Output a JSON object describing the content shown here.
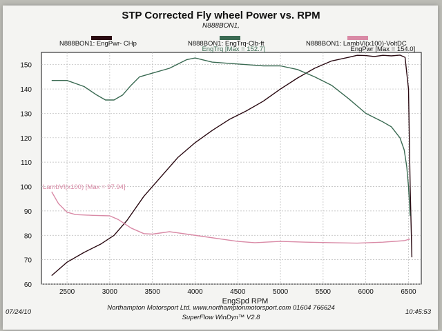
{
  "chart_data": {
    "type": "line",
    "title": "STP Corrected Fly wheel Power vs. RPM",
    "subtitle": "N888BON1,",
    "xlabel": "EngSpd  RPM",
    "ylabel": "",
    "xlim": [
      2200,
      6650
    ],
    "ylim": [
      60,
      155
    ],
    "x_ticks": [
      2500,
      3000,
      3500,
      4000,
      4500,
      5000,
      5500,
      6000,
      6500
    ],
    "y_ticks": [
      60,
      70,
      80,
      90,
      100,
      110,
      120,
      130,
      140,
      150
    ],
    "grid": true,
    "series": [
      {
        "name": "N888BON1: EngPwr- CHp",
        "color": "#2a0a12",
        "annotation": "EngPwr [Max = 154.0]",
        "x": [
          2320,
          2500,
          2700,
          2900,
          3050,
          3200,
          3400,
          3600,
          3800,
          4000,
          4200,
          4400,
          4600,
          4800,
          5000,
          5200,
          5400,
          5600,
          5800,
          5900,
          6000,
          6100,
          6200,
          6300,
          6400,
          6460,
          6500,
          6520,
          6540
        ],
        "values": [
          63.5,
          69,
          73,
          76.5,
          80,
          86,
          96,
          104,
          112,
          118,
          123,
          127.5,
          131,
          135,
          140,
          144.5,
          148.5,
          151.5,
          153,
          153.8,
          153.7,
          153.3,
          153.8,
          153.6,
          153.9,
          153,
          140,
          100,
          71
        ]
      },
      {
        "name": "N888BON1: EngTrq-Clb-ft",
        "color": "#3a6a52",
        "annotation": "EngTrq [Max = 152.7]",
        "x": [
          2320,
          2500,
          2700,
          2850,
          2950,
          3050,
          3150,
          3250,
          3350,
          3500,
          3700,
          3900,
          4000,
          4200,
          4400,
          4600,
          4800,
          5000,
          5200,
          5400,
          5600,
          5800,
          6000,
          6200,
          6300,
          6400,
          6450,
          6480,
          6500,
          6520
        ],
        "values": [
          143.5,
          143.5,
          141,
          137.5,
          135.5,
          135.5,
          137.5,
          141.5,
          145,
          146.5,
          148.5,
          152,
          152.7,
          151,
          150.5,
          150,
          149.5,
          149.5,
          148,
          145,
          141.5,
          136,
          130,
          126.5,
          124.5,
          120,
          115,
          108,
          100,
          88
        ]
      },
      {
        "name": "N888BON1: LambVl(x100)-VoltDC",
        "color": "#d98aa6",
        "annotation": "LambVl(x100) [Max = 97.94]",
        "x": [
          2320,
          2400,
          2500,
          2600,
          2800,
          3000,
          3100,
          3250,
          3400,
          3500,
          3700,
          3900,
          4100,
          4300,
          4500,
          4700,
          5000,
          5300,
          5600,
          5900,
          6200,
          6450,
          6520
        ],
        "values": [
          97.9,
          93,
          89.5,
          88.5,
          88.2,
          88,
          86.5,
          83,
          80.7,
          80.5,
          81.5,
          80.5,
          79.5,
          78.5,
          77.5,
          77,
          77.5,
          77.2,
          77,
          76.8,
          77.2,
          77.8,
          78.5
        ]
      }
    ]
  },
  "footer": {
    "date": "07/24/10",
    "time": "10:45:53",
    "company": "Northampton Motorsport Ltd. www.northamptonmotorsport.com 01604 766624",
    "software": "SuperFlow WinDyn™ V2.8"
  }
}
